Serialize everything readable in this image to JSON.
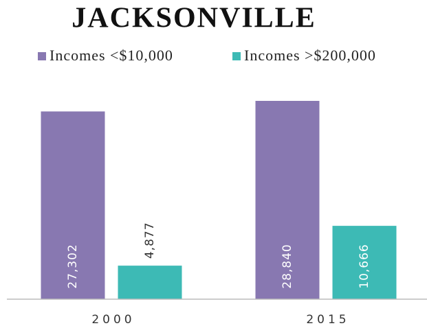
{
  "chart_data": {
    "type": "bar",
    "title": "JACKSONVILLE",
    "categories": [
      "2000",
      "2015"
    ],
    "series": [
      {
        "name": "Incomes <$10,000",
        "color": "#8878b1",
        "values": [
          27302,
          28840
        ],
        "value_labels": [
          "27,302",
          "28,840"
        ]
      },
      {
        "name": "Incomes >$200,000",
        "color": "#3dbab5",
        "values": [
          4877,
          10666
        ],
        "value_labels": [
          "4,877",
          "10,666"
        ]
      }
    ]
  }
}
